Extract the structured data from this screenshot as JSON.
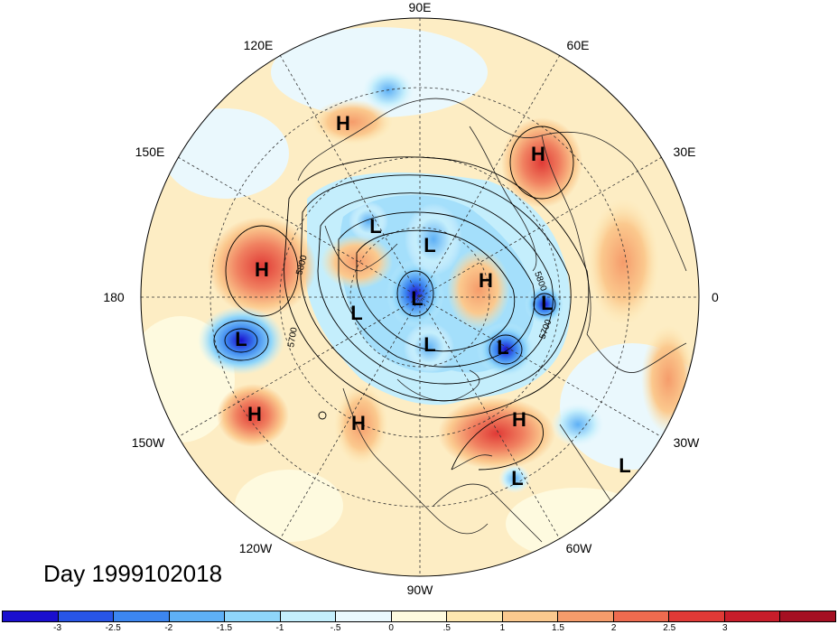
{
  "day_label": "Day 1999102018",
  "longitude_labels": [
    "90E",
    "60E",
    "30E",
    "0",
    "30W",
    "60W",
    "90W",
    "120W",
    "150W",
    "180",
    "150E",
    "120E"
  ],
  "contour_labels": [
    "5800",
    "5700",
    "5800",
    "5700"
  ],
  "centers": [
    {
      "type": "H",
      "name": "high-east-siberia"
    },
    {
      "type": "H",
      "name": "high-scandinavia"
    },
    {
      "type": "L",
      "name": "low-east-siberian-sea"
    },
    {
      "type": "L",
      "name": "low-arctic-north"
    },
    {
      "type": "H",
      "name": "high-greenland"
    },
    {
      "type": "H",
      "name": "high-bering"
    },
    {
      "type": "L",
      "name": "low-arctic-center"
    },
    {
      "type": "L",
      "name": "low-norwegian-sea"
    },
    {
      "type": "L",
      "name": "low-alaska"
    },
    {
      "type": "L",
      "name": "low-aleutian"
    },
    {
      "type": "L",
      "name": "low-hudson-bay"
    },
    {
      "type": "L",
      "name": "low-labrador"
    },
    {
      "type": "H",
      "name": "high-north-pacific"
    },
    {
      "type": "H",
      "name": "high-western-us"
    },
    {
      "type": "H",
      "name": "high-north-atlantic"
    },
    {
      "type": "L",
      "name": "low-caribbean"
    },
    {
      "type": "L",
      "name": "low-central-atlantic"
    }
  ],
  "colorbar": {
    "colors": [
      "#1a0fcf",
      "#2855e6",
      "#3c86f0",
      "#5eb0f5",
      "#8fd6fa",
      "#c4eefc",
      "#eaf8fd",
      "#fefadf",
      "#fde7b0",
      "#fbc98e",
      "#f59c6b",
      "#ee6b4f",
      "#e03a36",
      "#c81d2a",
      "#a50f22"
    ],
    "ticks": [
      "-3",
      "-2.5",
      "-2",
      "-1.5",
      "-1",
      "-.5",
      "0",
      ".5",
      "1",
      "1.5",
      "2",
      "2.5",
      "3"
    ]
  }
}
